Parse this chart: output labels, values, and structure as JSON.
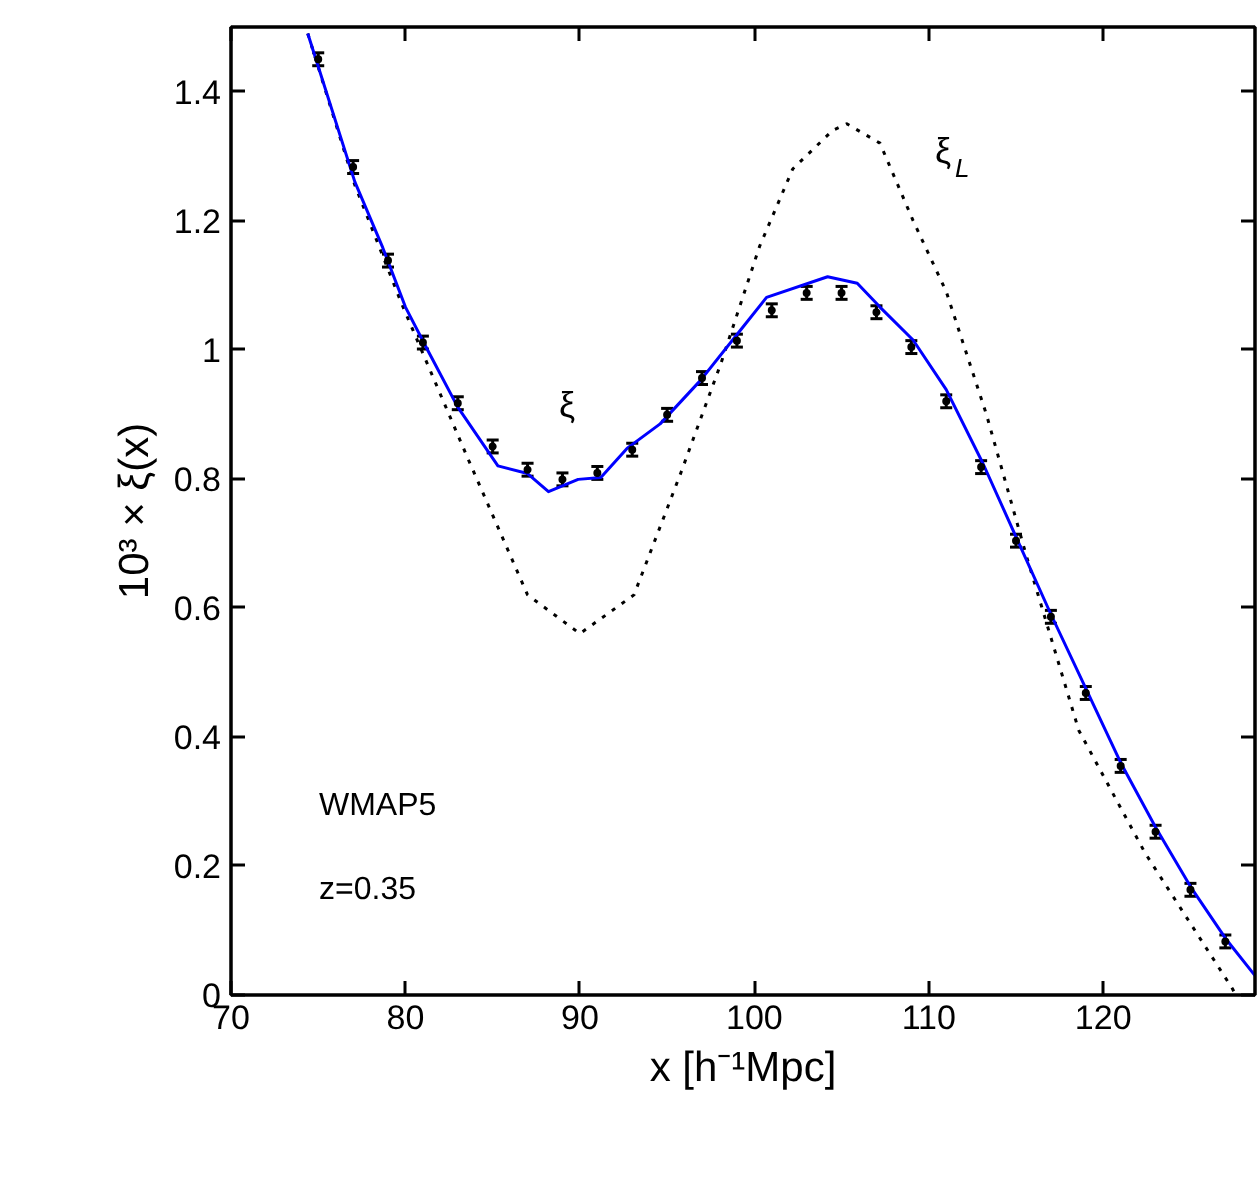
{
  "chart_data": {
    "type": "line",
    "xlabel": "x [h⁻¹Mpc]",
    "ylabel": "10³ × ξ(x)",
    "xlim": [
      70,
      128.7
    ],
    "ylim": [
      0,
      1.5
    ],
    "xticks": [
      70,
      80,
      90,
      100,
      110,
      120
    ],
    "yticks": [
      0,
      0.2,
      0.4,
      0.6,
      0.8,
      1,
      1.2,
      1.4
    ],
    "grid": false,
    "series": [
      {
        "color": "#000000",
        "line_style": "dotted",
        "x": [
          74.4,
          77.1,
          79.8,
          83.6,
          87.0,
          90.0,
          93.1,
          95.8,
          98.1,
          100.3,
          102.2,
          104.5,
          105.3,
          107.2,
          109.1,
          111.0,
          113.3,
          115.6,
          118.6,
          122.4,
          127.4,
          127.6
        ],
        "values": [
          1.49,
          1.255,
          1.07,
          0.83,
          0.62,
          0.56,
          0.62,
          0.81,
          0.98,
          1.16,
          1.28,
          1.34,
          1.35,
          1.32,
          1.2,
          1.09,
          0.9,
          0.68,
          0.41,
          0.22,
          0.01,
          0.0
        ]
      },
      {
        "color": "#0000ff",
        "line_style": "solid",
        "x": [
          74.4,
          77.1,
          78.7,
          80.0,
          81.3,
          83.0,
          85.3,
          87.0,
          88.2,
          89.9,
          91.2,
          92.7,
          94.6,
          96.9,
          99.2,
          100.7,
          104.2,
          105.9,
          107.2,
          109.1,
          111.0,
          113.1,
          115.0,
          117.0,
          119.0,
          121.0,
          123.0,
          125.0,
          127.0,
          128.7
        ],
        "values": [
          1.49,
          1.26,
          1.158,
          1.066,
          0.998,
          0.911,
          0.82,
          0.808,
          0.78,
          0.799,
          0.802,
          0.847,
          0.885,
          0.952,
          1.03,
          1.081,
          1.113,
          1.103,
          1.066,
          1.015,
          0.938,
          0.824,
          0.71,
          0.59,
          0.475,
          0.36,
          0.26,
          0.168,
          0.088,
          0.03
        ]
      },
      {
        "type": "scatter",
        "color": "#000000",
        "marker": "circle",
        "x": [
          75,
          77,
          79,
          81,
          83,
          85,
          87,
          89,
          91,
          93,
          95,
          97,
          99,
          101,
          103,
          105,
          107,
          109,
          111,
          113,
          115,
          117,
          119,
          121,
          123,
          125,
          127
        ],
        "values": [
          1.45,
          1.283,
          1.138,
          1.011,
          0.917,
          0.85,
          0.814,
          0.799,
          0.809,
          0.845,
          0.899,
          0.956,
          1.014,
          1.061,
          1.088,
          1.088,
          1.058,
          1.004,
          0.92,
          0.818,
          0.704,
          0.586,
          0.468,
          0.355,
          0.253,
          0.163,
          0.083
        ],
        "errors": [
          0.01,
          0.01,
          0.01,
          0.01,
          0.01,
          0.01,
          0.01,
          0.01,
          0.01,
          0.01,
          0.01,
          0.01,
          0.01,
          0.01,
          0.01,
          0.01,
          0.01,
          0.01,
          0.01,
          0.01,
          0.01,
          0.01,
          0.01,
          0.01,
          0.01,
          0.01,
          0.01
        ]
      }
    ],
    "annotations": [
      "ξ",
      "ξ$_{L}$",
      "WMAP5",
      "z=0.35"
    ]
  }
}
